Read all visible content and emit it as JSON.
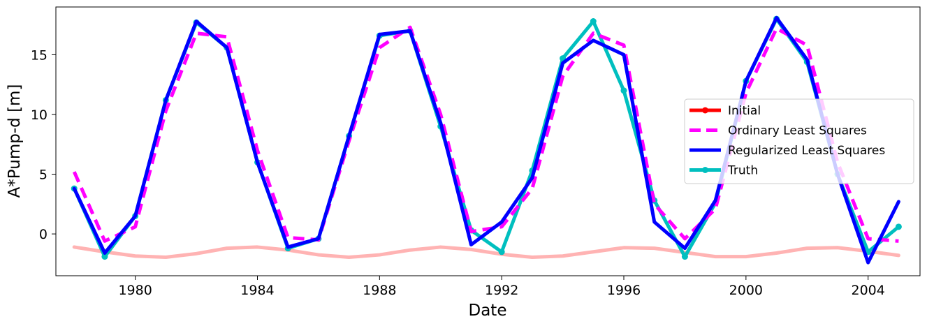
{
  "chart_data": {
    "type": "line",
    "xlabel": "Date",
    "ylabel": "A*Pump-d [m]",
    "xlim": [
      1977.4,
      2005.7
    ],
    "ylim": [
      -3.5,
      19.0
    ],
    "xticks": [
      1980,
      1984,
      1988,
      1992,
      1996,
      2000,
      2004
    ],
    "yticks": [
      0,
      5,
      10,
      15
    ],
    "legend_position": "center-right",
    "x": [
      1978,
      1979,
      1980,
      1981,
      1982,
      1983,
      1984,
      1985,
      1986,
      1987,
      1988,
      1989,
      1990,
      1991,
      1992,
      1993,
      1994,
      1995,
      1996,
      1997,
      1998,
      1999,
      2000,
      2001,
      2002,
      2003,
      2004,
      2005
    ],
    "series": [
      {
        "name": "Initial",
        "color": "#ff0000",
        "plot_color": "#ffb3b3",
        "marker": true,
        "dash": false,
        "values": [
          -1.1,
          -1.5,
          -1.85,
          -1.95,
          -1.65,
          -1.2,
          -1.1,
          -1.35,
          -1.75,
          -1.95,
          -1.75,
          -1.35,
          -1.1,
          -1.3,
          -1.7,
          -1.95,
          -1.85,
          -1.5,
          -1.15,
          -1.2,
          -1.55,
          -1.9,
          -1.9,
          -1.6,
          -1.2,
          -1.15,
          -1.45,
          -1.8
        ]
      },
      {
        "name": "Truth",
        "color": "#00bfbf",
        "marker": true,
        "dash": false,
        "values": [
          3.8,
          -1.9,
          1.5,
          11.2,
          17.7,
          15.6,
          6.0,
          -1.2,
          -0.4,
          8.2,
          16.6,
          17.0,
          9.0,
          0.3,
          -1.5,
          5.3,
          14.7,
          17.8,
          12.0,
          2.8,
          -1.9,
          2.6,
          12.8,
          18.0,
          14.4,
          5.0,
          -1.5,
          0.6
        ]
      },
      {
        "name": "Ordinary Least Squares",
        "color": "#ff00ff",
        "marker": false,
        "dash": true,
        "values": [
          5.2,
          -0.6,
          0.6,
          10.3,
          16.8,
          16.5,
          7.0,
          -0.3,
          -0.5,
          7.8,
          15.6,
          17.3,
          10.0,
          0.2,
          0.6,
          3.8,
          13.2,
          16.8,
          15.8,
          2.5,
          -0.4,
          2.1,
          11.8,
          17.2,
          15.8,
          6.0,
          -0.4,
          -0.6
        ]
      },
      {
        "name": "Regularized Least Squares",
        "color": "#0000ff",
        "marker": false,
        "dash": false,
        "values": [
          3.8,
          -1.6,
          1.5,
          11.2,
          17.8,
          15.6,
          6.0,
          -1.1,
          -0.4,
          8.2,
          16.7,
          17.0,
          9.3,
          -0.9,
          1.0,
          4.7,
          14.3,
          16.2,
          15.0,
          1.0,
          -1.2,
          2.8,
          12.8,
          18.1,
          14.6,
          5.0,
          -2.4,
          2.7
        ]
      }
    ],
    "legend_order": [
      "Initial",
      "Ordinary Least Squares",
      "Regularized Least Squares",
      "Truth"
    ]
  }
}
